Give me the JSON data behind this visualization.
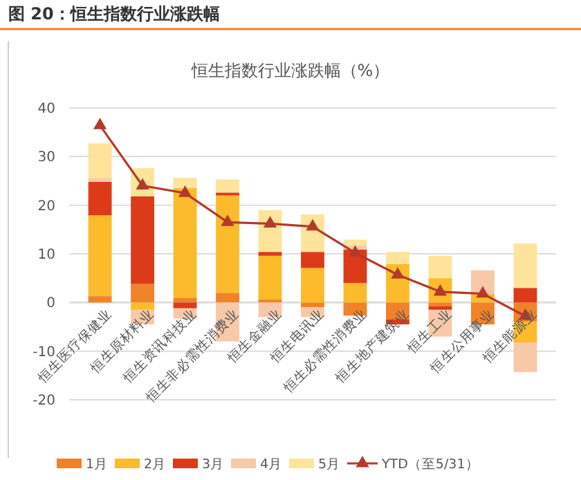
{
  "chart_data": {
    "type": "bar",
    "stacked": true,
    "title": "图 20：恒生指数行业涨跌幅",
    "subtitle": "恒生指数行业涨跌幅（%）",
    "categories": [
      "恒生医疗保健业",
      "恒生原材料业",
      "恒生资讯科技业",
      "恒生非必需性消费业",
      "恒生金融业",
      "恒生电讯业",
      "恒生必需性消费业",
      "恒生地产建筑业",
      "恒生工业",
      "恒生公用事业",
      "恒生能源业"
    ],
    "series": [
      {
        "name": "1月",
        "color": "#f0822a",
        "values": [
          1.3,
          3.8,
          1,
          2,
          0.6,
          -1,
          -2.7,
          -3.5,
          -0.8,
          -4.5,
          -4
        ]
      },
      {
        "name": "2月",
        "color": "#fbbb2b",
        "values": [
          16.6,
          -1.5,
          22.5,
          20,
          9,
          7.1,
          4,
          7.9,
          5,
          1.8,
          -4.2
        ]
      },
      {
        "name": "3月",
        "color": "#dc3b1a",
        "values": [
          6.9,
          18,
          -1.2,
          0.6,
          0.8,
          3.3,
          6.9,
          -1,
          -0.7,
          0,
          3
        ]
      },
      {
        "name": "4月",
        "color": "#f7c9a8",
        "values": [
          0.7,
          -3,
          -2.1,
          -8,
          -3,
          -2,
          0.8,
          null,
          -5.5,
          4.8,
          -6.1
        ]
      },
      {
        "name": "5月",
        "color": "#fde49a",
        "values": [
          7.2,
          5.8,
          2.1,
          2.7,
          8.6,
          7.7,
          1.2,
          2.5,
          4.6,
          0,
          9.1
        ]
      },
      {
        "name": "YTD（至5/31）",
        "type": "line",
        "color": "#b5392b",
        "marker": "triangle",
        "values": [
          36.4,
          24,
          22.5,
          16.5,
          16.2,
          15.6,
          10.2,
          5.7,
          2.2,
          1.8,
          -2.8
        ]
      }
    ],
    "ylim": [
      -20,
      40
    ],
    "yticks": [
      -20,
      -10,
      0,
      10,
      20,
      30,
      40
    ],
    "grid": "y",
    "legend": "bottom"
  }
}
